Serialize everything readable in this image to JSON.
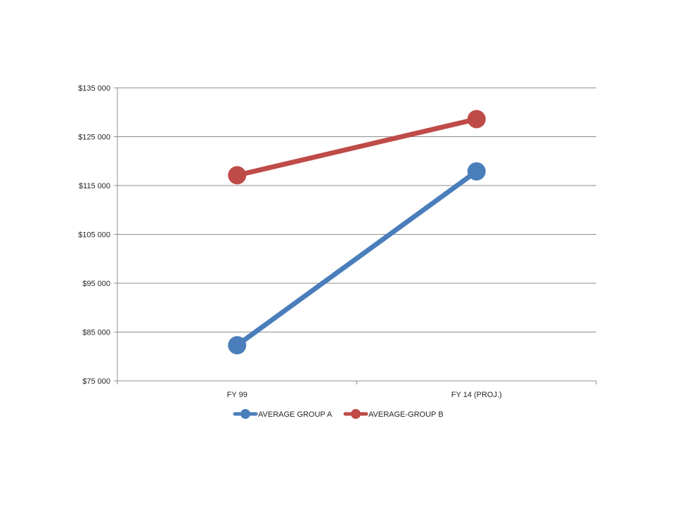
{
  "chart_data": {
    "type": "line",
    "categories": [
      "FY 99",
      "FY 14 (PROJ.)"
    ],
    "ylim": [
      75000,
      135000
    ],
    "yticks": [
      75000,
      85000,
      95000,
      105000,
      115000,
      125000,
      135000
    ],
    "ytick_labels": [
      "$75 000",
      "$85 000",
      "$95 000",
      "$105 000",
      "$115 000",
      "$125 000",
      "$135 000"
    ],
    "grid": true,
    "legend_position": "bottom",
    "series": [
      {
        "name": "AVERAGE GROUP A",
        "color": "#4a7ebb",
        "values": [
          82300,
          117900
        ]
      },
      {
        "name": "AVERAGE-GROUP B",
        "color": "#be4b48",
        "values": [
          117100,
          128600
        ]
      }
    ]
  }
}
